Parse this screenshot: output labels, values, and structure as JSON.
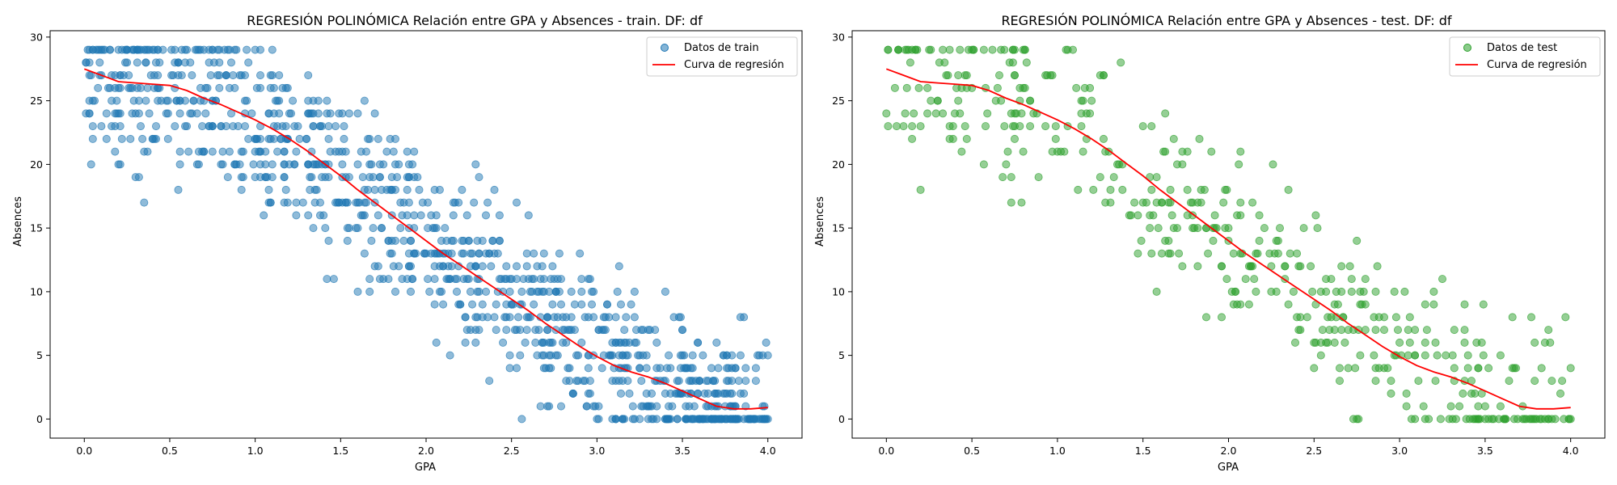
{
  "chart_data": [
    {
      "type": "scatter",
      "title": "REGRESIÓN POLINÓMICA Relación entre GPA y Absences - train. DF: df",
      "xlabel": "GPA",
      "ylabel": "Absences",
      "xlim": [
        -0.2,
        4.2
      ],
      "ylim": [
        -1.5,
        30.5
      ],
      "xticks": [
        "0.0",
        "0.5",
        "1.0",
        "1.5",
        "2.0",
        "2.5",
        "3.0",
        "3.5",
        "4.0"
      ],
      "yticks": [
        "0",
        "5",
        "10",
        "15",
        "20",
        "25",
        "30"
      ],
      "grid": false,
      "legend_position": "top-right",
      "point_color": "#1f77b4",
      "curve_color": "#ff0000",
      "sample_count": 1100,
      "scatter_series": {
        "name": "Datos de train"
      },
      "curve": {
        "name": "Curva de regresión",
        "x": [
          0.0,
          0.1,
          0.2,
          0.3,
          0.4,
          0.5,
          0.6,
          0.7,
          0.8,
          0.9,
          1.0,
          1.1,
          1.2,
          1.3,
          1.4,
          1.5,
          1.6,
          1.7,
          1.8,
          1.9,
          2.0,
          2.1,
          2.2,
          2.3,
          2.4,
          2.5,
          2.6,
          2.7,
          2.8,
          2.9,
          3.0,
          3.1,
          3.2,
          3.3,
          3.4,
          3.5,
          3.6,
          3.7,
          3.8,
          3.9,
          4.0
        ],
        "y": [
          27.5,
          27.0,
          26.5,
          26.4,
          26.3,
          26.2,
          25.8,
          25.2,
          24.7,
          24.1,
          23.5,
          22.8,
          22.0,
          21.1,
          20.1,
          19.1,
          18.0,
          17.0,
          16.0,
          15.0,
          14.0,
          13.0,
          12.1,
          11.2,
          10.3,
          9.4,
          8.5,
          7.5,
          6.6,
          5.7,
          4.9,
          4.2,
          3.7,
          3.3,
          2.8,
          2.2,
          1.6,
          1.0,
          0.8,
          0.8,
          0.9
        ]
      }
    },
    {
      "type": "scatter",
      "title": "REGRESIÓN POLINÓMICA Relación entre GPA y Absences - test. DF: df",
      "xlabel": "GPA",
      "ylabel": "Absences",
      "xlim": [
        -0.2,
        4.2
      ],
      "ylim": [
        -1.5,
        30.5
      ],
      "xticks": [
        "0.0",
        "0.5",
        "1.0",
        "1.5",
        "2.0",
        "2.5",
        "3.0",
        "3.5",
        "4.0"
      ],
      "yticks": [
        "0",
        "5",
        "10",
        "15",
        "20",
        "25",
        "30"
      ],
      "grid": false,
      "legend_position": "top-right",
      "point_color": "#2ca02c",
      "curve_color": "#ff0000",
      "sample_count": 480,
      "scatter_series": {
        "name": "Datos de test"
      },
      "curve": {
        "name": "Curva de regresión",
        "x": [
          0.0,
          0.1,
          0.2,
          0.3,
          0.4,
          0.5,
          0.6,
          0.7,
          0.8,
          0.9,
          1.0,
          1.1,
          1.2,
          1.3,
          1.4,
          1.5,
          1.6,
          1.7,
          1.8,
          1.9,
          2.0,
          2.1,
          2.2,
          2.3,
          2.4,
          2.5,
          2.6,
          2.7,
          2.8,
          2.9,
          3.0,
          3.1,
          3.2,
          3.3,
          3.4,
          3.5,
          3.6,
          3.7,
          3.8,
          3.9,
          4.0
        ],
        "y": [
          27.5,
          27.0,
          26.5,
          26.4,
          26.3,
          26.2,
          25.8,
          25.2,
          24.7,
          24.1,
          23.5,
          22.8,
          22.0,
          21.1,
          20.1,
          19.1,
          18.0,
          17.0,
          16.0,
          15.0,
          14.0,
          13.0,
          12.1,
          11.2,
          10.3,
          9.4,
          8.5,
          7.5,
          6.6,
          5.7,
          4.9,
          4.2,
          3.7,
          3.3,
          2.8,
          2.2,
          1.6,
          1.0,
          0.8,
          0.8,
          0.9
        ]
      }
    }
  ]
}
